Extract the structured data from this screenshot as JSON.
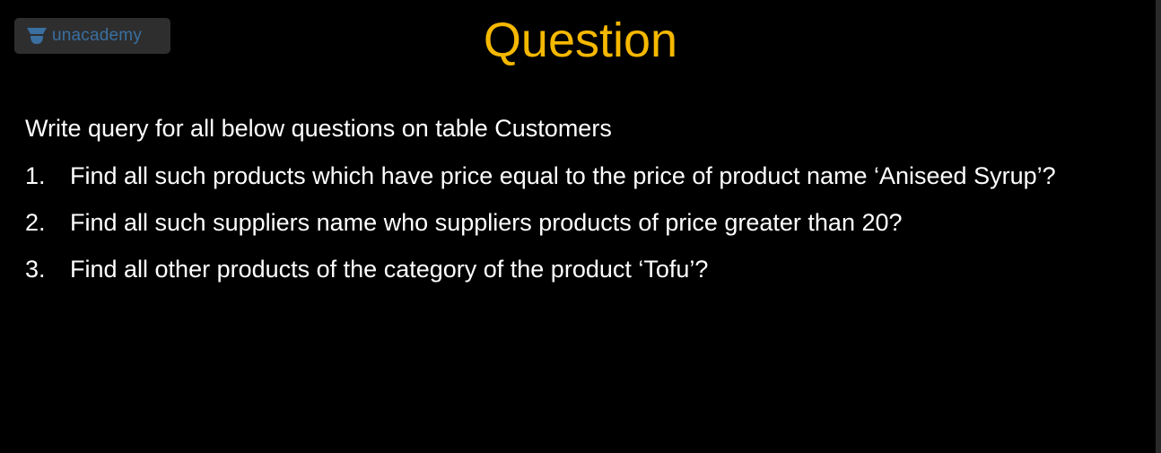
{
  "branding": {
    "logo_text": "unacademy",
    "logo_color": "#3a6fa0"
  },
  "slide": {
    "title": "Question",
    "title_color": "#f5b800",
    "intro": "Write query for all below questions on table Customers",
    "questions": [
      {
        "number": "1.",
        "text": "Find all such products which have price equal to the price of product name ‘Aniseed Syrup’?"
      },
      {
        "number": "2.",
        "text": "Find all such suppliers name who suppliers products of price greater than 20?"
      },
      {
        "number": "3.",
        "text": "Find all other products of the category of the product ‘Tofu’?"
      }
    ]
  }
}
